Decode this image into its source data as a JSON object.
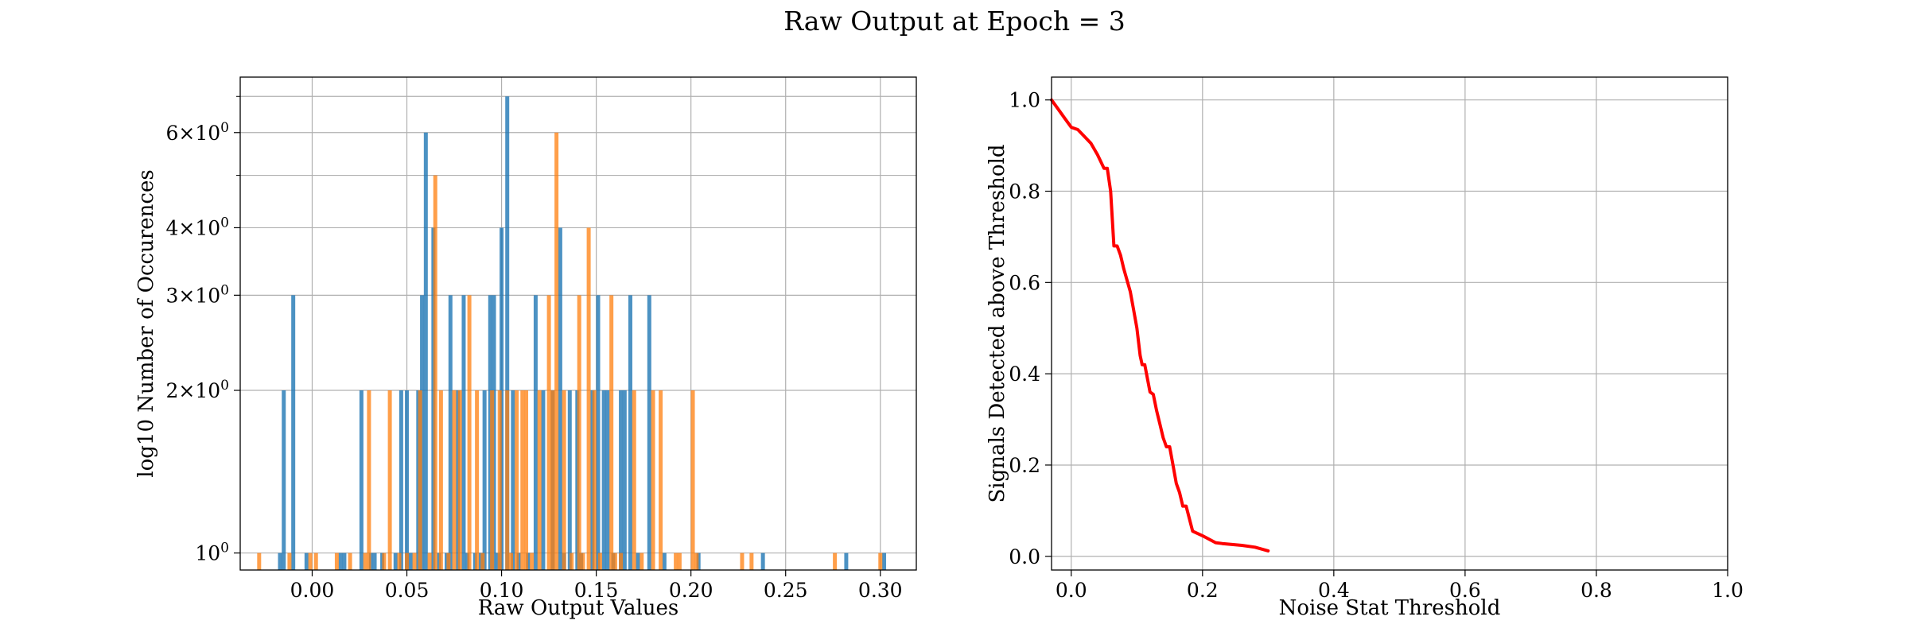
{
  "figure": {
    "suptitle": "Raw Output at Epoch = 3"
  },
  "chart_data": [
    {
      "type": "bar",
      "subtype": "histogram-overlay",
      "xlabel": "Raw Output Values",
      "ylabel": "log10 Number of Occurences",
      "yscale": "log",
      "xlim": [
        -0.038,
        0.319
      ],
      "ylim": [
        0.93,
        7.6
      ],
      "grid": true,
      "legend": "none",
      "x_ticks": [
        0.0,
        0.05,
        0.1,
        0.15,
        0.2,
        0.25,
        0.3
      ],
      "x_tick_labels": [
        "0.00",
        "0.05",
        "0.10",
        "0.15",
        "0.20",
        "0.25",
        "0.30"
      ],
      "y_ticks": [
        1,
        2,
        3,
        4,
        6
      ],
      "y_tick_labels": [
        "10^0",
        "2×10^0",
        "3×10^0",
        "4×10^0",
        "6×10^0"
      ],
      "y_minor_ticks": [
        5,
        7
      ],
      "bin_width": 0.0021,
      "series": [
        {
          "color": "#1f77b4",
          "bins": [
            [
              -0.017,
              1
            ],
            [
              -0.015,
              2
            ],
            [
              -0.01,
              3
            ],
            [
              -0.003,
              1
            ],
            [
              0.015,
              1
            ],
            [
              0.017,
              1
            ],
            [
              0.026,
              2
            ],
            [
              0.031,
              1
            ],
            [
              0.033,
              1
            ],
            [
              0.037,
              1
            ],
            [
              0.044,
              1
            ],
            [
              0.047,
              2
            ],
            [
              0.05,
              2
            ],
            [
              0.052,
              1
            ],
            [
              0.056,
              2
            ],
            [
              0.058,
              3
            ],
            [
              0.06,
              6
            ],
            [
              0.064,
              4
            ],
            [
              0.067,
              1
            ],
            [
              0.071,
              1
            ],
            [
              0.073,
              3
            ],
            [
              0.077,
              2
            ],
            [
              0.08,
              3
            ],
            [
              0.082,
              1
            ],
            [
              0.086,
              1
            ],
            [
              0.089,
              1
            ],
            [
              0.091,
              2
            ],
            [
              0.094,
              3
            ],
            [
              0.096,
              3
            ],
            [
              0.098,
              1
            ],
            [
              0.1,
              4
            ],
            [
              0.103,
              7
            ],
            [
              0.106,
              2
            ],
            [
              0.109,
              1
            ],
            [
              0.114,
              1
            ],
            [
              0.118,
              3
            ],
            [
              0.122,
              2
            ],
            [
              0.127,
              2
            ],
            [
              0.131,
              4
            ],
            [
              0.133,
              1
            ],
            [
              0.136,
              2
            ],
            [
              0.14,
              2
            ],
            [
              0.142,
              1
            ],
            [
              0.148,
              2
            ],
            [
              0.151,
              3
            ],
            [
              0.154,
              2
            ],
            [
              0.156,
              2
            ],
            [
              0.159,
              1
            ],
            [
              0.163,
              2
            ],
            [
              0.165,
              2
            ],
            [
              0.168,
              3
            ],
            [
              0.172,
              1
            ],
            [
              0.178,
              3
            ],
            [
              0.186,
              1
            ],
            [
              0.204,
              1
            ],
            [
              0.238,
              1
            ],
            [
              0.282,
              1
            ],
            [
              0.302,
              1
            ]
          ]
        },
        {
          "color": "#ff7f0e",
          "alpha": 0.75,
          "bins": [
            [
              -0.028,
              1
            ],
            [
              -0.012,
              1
            ],
            [
              -0.001,
              1
            ],
            [
              0.002,
              1
            ],
            [
              0.013,
              1
            ],
            [
              0.02,
              1
            ],
            [
              0.028,
              1
            ],
            [
              0.03,
              2
            ],
            [
              0.038,
              1
            ],
            [
              0.041,
              2
            ],
            [
              0.046,
              1
            ],
            [
              0.05,
              1
            ],
            [
              0.054,
              1
            ],
            [
              0.057,
              2
            ],
            [
              0.062,
              1
            ],
            [
              0.065,
              5
            ],
            [
              0.068,
              2
            ],
            [
              0.072,
              1
            ],
            [
              0.075,
              2
            ],
            [
              0.078,
              2
            ],
            [
              0.083,
              3
            ],
            [
              0.087,
              2
            ],
            [
              0.09,
              1
            ],
            [
              0.095,
              2
            ],
            [
              0.099,
              2
            ],
            [
              0.103,
              2
            ],
            [
              0.105,
              1
            ],
            [
              0.108,
              2
            ],
            [
              0.111,
              2
            ],
            [
              0.113,
              2
            ],
            [
              0.116,
              1
            ],
            [
              0.12,
              2
            ],
            [
              0.125,
              3
            ],
            [
              0.127,
              2
            ],
            [
              0.129,
              6
            ],
            [
              0.133,
              2
            ],
            [
              0.137,
              1
            ],
            [
              0.141,
              3
            ],
            [
              0.143,
              1
            ],
            [
              0.146,
              4
            ],
            [
              0.149,
              2
            ],
            [
              0.152,
              1
            ],
            [
              0.158,
              3
            ],
            [
              0.16,
              1
            ],
            [
              0.163,
              1
            ],
            [
              0.17,
              2
            ],
            [
              0.174,
              1
            ],
            [
              0.18,
              2
            ],
            [
              0.184,
              2
            ],
            [
              0.192,
              1
            ],
            [
              0.194,
              1
            ],
            [
              0.201,
              2
            ],
            [
              0.203,
              1
            ],
            [
              0.227,
              1
            ],
            [
              0.232,
              1
            ],
            [
              0.276,
              1
            ],
            [
              0.3,
              1
            ]
          ]
        }
      ]
    },
    {
      "type": "line",
      "xlabel": "Noise Stat Threshold",
      "ylabel": "Signals Detected above Threshold",
      "xlim": [
        -0.03,
        1.0
      ],
      "ylim": [
        -0.03,
        1.05
      ],
      "grid": true,
      "legend": "none",
      "x_ticks": [
        0.0,
        0.2,
        0.4,
        0.6,
        0.8,
        1.0
      ],
      "x_tick_labels": [
        "0.0",
        "0.2",
        "0.4",
        "0.6",
        "0.8",
        "1.0"
      ],
      "y_ticks": [
        0.0,
        0.2,
        0.4,
        0.6,
        0.8,
        1.0
      ],
      "y_tick_labels": [
        "0.0",
        "0.2",
        "0.4",
        "0.6",
        "0.8",
        "1.0"
      ],
      "series": [
        {
          "color": "#ff0000",
          "x": [
            -0.03,
            -0.02,
            -0.01,
            0.0,
            0.01,
            0.02,
            0.03,
            0.04,
            0.05,
            0.055,
            0.06,
            0.065,
            0.07,
            0.075,
            0.08,
            0.09,
            0.095,
            0.1,
            0.105,
            0.108,
            0.112,
            0.12,
            0.125,
            0.13,
            0.135,
            0.14,
            0.145,
            0.15,
            0.155,
            0.16,
            0.165,
            0.17,
            0.175,
            0.185,
            0.2,
            0.22,
            0.23,
            0.26,
            0.28,
            0.3
          ],
          "y": [
            1.0,
            0.98,
            0.96,
            0.94,
            0.935,
            0.92,
            0.905,
            0.88,
            0.85,
            0.85,
            0.8,
            0.68,
            0.68,
            0.66,
            0.63,
            0.58,
            0.54,
            0.5,
            0.44,
            0.42,
            0.42,
            0.36,
            0.355,
            0.32,
            0.29,
            0.26,
            0.24,
            0.24,
            0.2,
            0.16,
            0.14,
            0.11,
            0.11,
            0.055,
            0.045,
            0.03,
            0.028,
            0.024,
            0.02,
            0.012
          ]
        }
      ]
    }
  ]
}
